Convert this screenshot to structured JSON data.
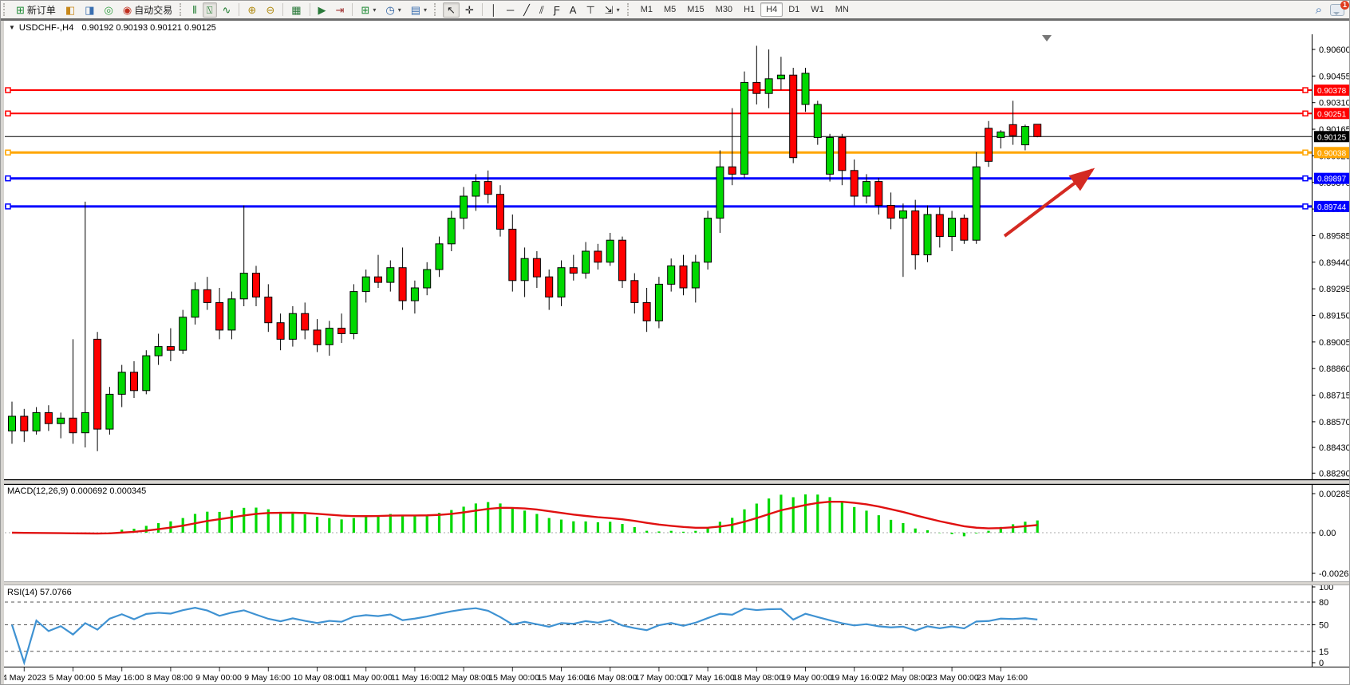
{
  "toolbar": {
    "main_buttons": [
      {
        "name": "new-order-button",
        "glyph": "⊞",
        "color": "#1d8a34",
        "label": "新订单"
      },
      {
        "name": "market-watch-button",
        "glyph": "◧",
        "color": "#c8881a",
        "label": ""
      },
      {
        "name": "data-window-button",
        "glyph": "◨",
        "color": "#3a6fb0",
        "label": ""
      },
      {
        "name": "navigator-button",
        "glyph": "◎",
        "color": "#2e9e3f",
        "label": ""
      },
      {
        "name": "auto-trading-button",
        "glyph": "◉",
        "color": "#c03020",
        "label": "自动交易"
      }
    ],
    "chart_type_buttons": [
      {
        "name": "bar-chart-button",
        "glyph": "⫴",
        "color": "#1d7a2e",
        "active": false
      },
      {
        "name": "candlestick-chart-button",
        "glyph": "⍂",
        "color": "#1d7a2e",
        "active": true
      },
      {
        "name": "line-chart-button",
        "glyph": "∿",
        "color": "#1d7a2e",
        "active": false
      }
    ],
    "zoom_buttons": [
      {
        "name": "zoom-in-button",
        "glyph": "⊕",
        "color": "#b08a10"
      },
      {
        "name": "zoom-out-button",
        "glyph": "⊖",
        "color": "#b08a10"
      }
    ],
    "window_buttons": [
      {
        "name": "tile-windows-button",
        "glyph": "▦",
        "color": "#2a7a3a"
      }
    ],
    "scroll_buttons": [
      {
        "name": "auto-scroll-button",
        "glyph": "▶",
        "color": "#2a7a3a"
      },
      {
        "name": "chart-shift-button",
        "glyph": "⇥",
        "color": "#a03030"
      }
    ],
    "dropdown_buttons": [
      {
        "name": "new-chart-button",
        "glyph": "⊞",
        "color": "#1d8a34",
        "dropdown": true
      },
      {
        "name": "periods-button",
        "glyph": "◷",
        "color": "#2a5fa0",
        "dropdown": true
      },
      {
        "name": "indicators-button",
        "glyph": "▤",
        "color": "#3a6fb0",
        "dropdown": true
      }
    ],
    "cursor_buttons": [
      {
        "name": "cursor-button",
        "glyph": "↖",
        "color": "#222",
        "active": true
      },
      {
        "name": "crosshair-button",
        "glyph": "✛",
        "color": "#222",
        "active": false
      }
    ],
    "draw_buttons": [
      {
        "name": "vertical-line-button",
        "glyph": "│",
        "color": "#222"
      },
      {
        "name": "horizontal-line-button",
        "glyph": "─",
        "color": "#222"
      },
      {
        "name": "trendline-button",
        "glyph": "╱",
        "color": "#222"
      },
      {
        "name": "equidistant-channel-button",
        "glyph": "⫽",
        "color": "#222"
      },
      {
        "name": "fibonacci-button",
        "glyph": "Ƒ",
        "color": "#222"
      },
      {
        "name": "text-button",
        "glyph": "A",
        "color": "#222"
      },
      {
        "name": "text-label-button",
        "glyph": "⊤",
        "color": "#222"
      },
      {
        "name": "arrows-button",
        "glyph": "⇲",
        "color": "#222",
        "dropdown": true
      }
    ],
    "timeframes": [
      "M1",
      "M5",
      "M15",
      "M30",
      "H1",
      "H4",
      "D1",
      "W1",
      "MN"
    ],
    "active_timeframe": "H4",
    "search_glyph": "⌕",
    "notification_count": "1"
  },
  "chart": {
    "title": {
      "collapse_glyph": "▼",
      "symbol": "USDCHF-,H4",
      "ohlc_text": "0.90192 0.90193 0.90121 0.90125"
    }
  },
  "chart_data": {
    "type": "candlestick",
    "symbol": "USDCHF-",
    "timeframe": "H4",
    "current_bar": {
      "open": 0.90192,
      "high": 0.90193,
      "low": 0.90121,
      "close": 0.90125
    },
    "price_axis_ticks": [
      "0.90600",
      "0.90455",
      "0.90310",
      "0.90165",
      "0.90020",
      "0.89875",
      "0.89730",
      "0.89585",
      "0.89440",
      "0.89295",
      "0.89150",
      "0.89005",
      "0.88860",
      "0.88715",
      "0.88570",
      "0.88430",
      "0.88290"
    ],
    "hlines": [
      {
        "price": 0.90378,
        "label": "0.90378",
        "color": "#ff0000",
        "width": 2
      },
      {
        "price": 0.90251,
        "label": "0.90251",
        "color": "#ff0000",
        "width": 2
      },
      {
        "price": 0.90125,
        "label": "0.90125",
        "color": "#000000",
        "width": 1
      },
      {
        "price": 0.90038,
        "label": "0.90038",
        "color": "#ffa500",
        "width": 3
      },
      {
        "price": 0.89897,
        "label": "0.89897",
        "color": "#0000ff",
        "width": 3
      },
      {
        "price": 0.89744,
        "label": "0.89744",
        "color": "#0000ff",
        "width": 3
      }
    ],
    "candles": [
      [
        0.8852,
        0.8868,
        0.8845,
        0.886
      ],
      [
        0.886,
        0.8864,
        0.8846,
        0.8852
      ],
      [
        0.8852,
        0.8865,
        0.885,
        0.8862
      ],
      [
        0.8862,
        0.8866,
        0.8852,
        0.8856
      ],
      [
        0.8856,
        0.8862,
        0.8848,
        0.8859
      ],
      [
        0.8859,
        0.8902,
        0.8845,
        0.8851
      ],
      [
        0.8851,
        0.8977,
        0.8843,
        0.8862
      ],
      [
        0.8902,
        0.8906,
        0.8841,
        0.8853
      ],
      [
        0.8853,
        0.8876,
        0.885,
        0.8872
      ],
      [
        0.8872,
        0.8888,
        0.8865,
        0.8884
      ],
      [
        0.8884,
        0.889,
        0.887,
        0.8874
      ],
      [
        0.8874,
        0.8896,
        0.8872,
        0.8893
      ],
      [
        0.8893,
        0.8905,
        0.8888,
        0.8898
      ],
      [
        0.8898,
        0.8908,
        0.889,
        0.8896
      ],
      [
        0.8896,
        0.8918,
        0.8894,
        0.8914
      ],
      [
        0.8914,
        0.8933,
        0.891,
        0.8929
      ],
      [
        0.8929,
        0.8936,
        0.8918,
        0.8922
      ],
      [
        0.8922,
        0.893,
        0.8902,
        0.8907
      ],
      [
        0.8907,
        0.8928,
        0.8902,
        0.8924
      ],
      [
        0.8924,
        0.8975,
        0.892,
        0.8938
      ],
      [
        0.8938,
        0.8942,
        0.892,
        0.8925
      ],
      [
        0.8925,
        0.8932,
        0.8906,
        0.8911
      ],
      [
        0.8911,
        0.8916,
        0.8896,
        0.8902
      ],
      [
        0.8902,
        0.892,
        0.8898,
        0.8916
      ],
      [
        0.8916,
        0.8922,
        0.8902,
        0.8907
      ],
      [
        0.8907,
        0.8913,
        0.8895,
        0.8899
      ],
      [
        0.8899,
        0.8912,
        0.8893,
        0.8908
      ],
      [
        0.8908,
        0.8916,
        0.89,
        0.8905
      ],
      [
        0.8905,
        0.8932,
        0.8902,
        0.8928
      ],
      [
        0.8928,
        0.894,
        0.8922,
        0.8936
      ],
      [
        0.8936,
        0.8948,
        0.893,
        0.8933
      ],
      [
        0.8933,
        0.8945,
        0.8928,
        0.8941
      ],
      [
        0.8941,
        0.8952,
        0.8918,
        0.8923
      ],
      [
        0.8923,
        0.8934,
        0.8916,
        0.893
      ],
      [
        0.893,
        0.8944,
        0.8926,
        0.894
      ],
      [
        0.894,
        0.8958,
        0.8936,
        0.8954
      ],
      [
        0.8954,
        0.8972,
        0.895,
        0.8968
      ],
      [
        0.8968,
        0.8985,
        0.8962,
        0.898
      ],
      [
        0.898,
        0.8992,
        0.8972,
        0.8988
      ],
      [
        0.8988,
        0.8994,
        0.8976,
        0.8981
      ],
      [
        0.8981,
        0.8986,
        0.8958,
        0.8962
      ],
      [
        0.8962,
        0.897,
        0.8928,
        0.8934
      ],
      [
        0.8934,
        0.8952,
        0.8925,
        0.8946
      ],
      [
        0.8946,
        0.895,
        0.893,
        0.8936
      ],
      [
        0.8936,
        0.894,
        0.8918,
        0.8925
      ],
      [
        0.8925,
        0.8945,
        0.892,
        0.8941
      ],
      [
        0.8941,
        0.8948,
        0.8934,
        0.8938
      ],
      [
        0.8938,
        0.8955,
        0.8935,
        0.895
      ],
      [
        0.895,
        0.8954,
        0.894,
        0.8944
      ],
      [
        0.8944,
        0.896,
        0.8942,
        0.8956
      ],
      [
        0.8956,
        0.8958,
        0.893,
        0.8934
      ],
      [
        0.8934,
        0.8938,
        0.8916,
        0.8922
      ],
      [
        0.8922,
        0.893,
        0.8906,
        0.8912
      ],
      [
        0.8912,
        0.8936,
        0.8908,
        0.8932
      ],
      [
        0.8932,
        0.8946,
        0.8928,
        0.8942
      ],
      [
        0.8942,
        0.8948,
        0.8926,
        0.893
      ],
      [
        0.893,
        0.8948,
        0.8922,
        0.8944
      ],
      [
        0.8944,
        0.8972,
        0.894,
        0.8968
      ],
      [
        0.8968,
        0.9005,
        0.896,
        0.8996
      ],
      [
        0.8996,
        0.9028,
        0.8986,
        0.8992
      ],
      [
        0.8992,
        0.9048,
        0.899,
        0.9042
      ],
      [
        0.9042,
        0.9062,
        0.903,
        0.9036
      ],
      [
        0.9036,
        0.906,
        0.9028,
        0.9044
      ],
      [
        0.9044,
        0.9056,
        0.9038,
        0.9046
      ],
      [
        0.9046,
        0.905,
        0.8998,
        0.9001
      ],
      [
        0.903,
        0.905,
        0.9026,
        0.9047
      ],
      [
        0.9012,
        0.9032,
        0.9008,
        0.903
      ],
      [
        0.8992,
        0.9014,
        0.8988,
        0.9012
      ],
      [
        0.9012,
        0.9014,
        0.8986,
        0.8994
      ],
      [
        0.8994,
        0.9,
        0.8975,
        0.898
      ],
      [
        0.898,
        0.8992,
        0.8976,
        0.8988
      ],
      [
        0.8988,
        0.899,
        0.897,
        0.8975
      ],
      [
        0.8975,
        0.8982,
        0.8962,
        0.8968
      ],
      [
        0.8968,
        0.8976,
        0.8936,
        0.8972
      ],
      [
        0.8972,
        0.8978,
        0.894,
        0.8948
      ],
      [
        0.8948,
        0.8975,
        0.8944,
        0.897
      ],
      [
        0.897,
        0.8974,
        0.8952,
        0.8958
      ],
      [
        0.8958,
        0.8972,
        0.895,
        0.8968
      ],
      [
        0.8968,
        0.897,
        0.8954,
        0.8956
      ],
      [
        0.8956,
        0.9004,
        0.8954,
        0.8996
      ],
      [
        0.9017,
        0.9021,
        0.8996,
        0.8999
      ],
      [
        0.9012,
        0.9016,
        0.9006,
        0.9015
      ],
      [
        0.9019,
        0.9032,
        0.9008,
        0.9013
      ],
      [
        0.9008,
        0.9019,
        0.9005,
        0.9018
      ],
      [
        0.90192,
        0.90193,
        0.90121,
        0.90125
      ]
    ],
    "up_color": "#00d800",
    "down_color": "#ff0000",
    "time_labels": [
      "4 May 2023",
      "5 May 00:00",
      "5 May 16:00",
      "8 May 08:00",
      "9 May 00:00",
      "9 May 16:00",
      "10 May 08:00",
      "11 May 00:00",
      "11 May 16:00",
      "12 May 08:00",
      "15 May 00:00",
      "15 May 16:00",
      "16 May 08:00",
      "17 May 00:00",
      "17 May 16:00",
      "18 May 08:00",
      "19 May 00:00",
      "19 May 16:00",
      "22 May 08:00",
      "23 May 00:00",
      "23 May 16:00"
    ],
    "time_label_start_bar": 1,
    "time_label_step": 4,
    "arrow": {
      "color": "#d42a22",
      "tail": [
        1258,
        253
      ],
      "tip": [
        1368,
        170
      ]
    },
    "indicators": {
      "macd": {
        "label": "MACD(12,26,9) 0.000692 0.000345",
        "params": [
          12,
          26,
          9
        ],
        "current_value": 0.000692,
        "current_signal": 0.000345,
        "axis_labels": [
          "0.002855",
          "0.00",
          "-0.002634"
        ],
        "histogram_color": "#00d800",
        "signal_color": "#e01010"
      },
      "rsi": {
        "label": "RSI(14) 57.0766",
        "period": 14,
        "current_value": 57.0766,
        "levels": [
          80,
          50,
          15
        ],
        "axis_labels": [
          "100",
          "80",
          "50",
          "15",
          "0"
        ],
        "line_color": "#3f92d2"
      }
    }
  }
}
